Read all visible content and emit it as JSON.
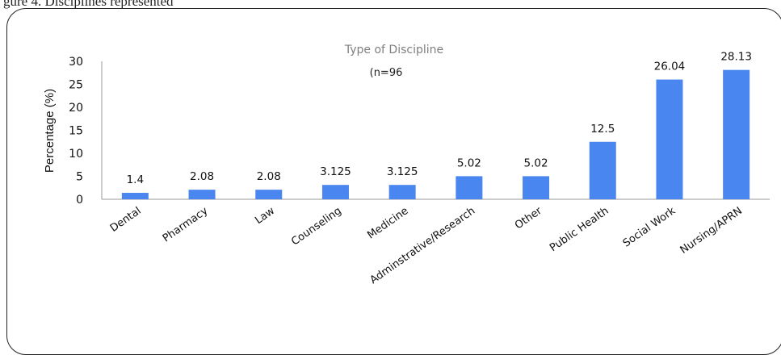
{
  "caption_fragment": "gure 4.  Disciplines represented",
  "chart_data": {
    "type": "bar",
    "title": "Type of Discipline",
    "subtitle": "(n=96",
    "xlabel": "",
    "ylabel": "Percentage (%)",
    "ylim": [
      0,
      30
    ],
    "yticks": [
      0,
      5,
      10,
      15,
      20,
      25,
      30
    ],
    "grid": false,
    "bar_color": "#4a86f0",
    "categories": [
      "Dental",
      "Pharmacy",
      "Law",
      "Counseling",
      "Medicine",
      "Adminstrative/Research",
      "Other",
      "Public Health",
      "Social Work",
      "Nursing/APRN"
    ],
    "values": [
      1.4,
      2.08,
      2.08,
      3.125,
      3.125,
      5.02,
      5.02,
      12.5,
      26.04,
      28.13
    ],
    "value_labels": [
      "1.4",
      "2.08",
      "2.08",
      "3.125",
      "3.125",
      "5.02",
      "5.02",
      "12.5",
      "26.04",
      "28.13"
    ]
  }
}
